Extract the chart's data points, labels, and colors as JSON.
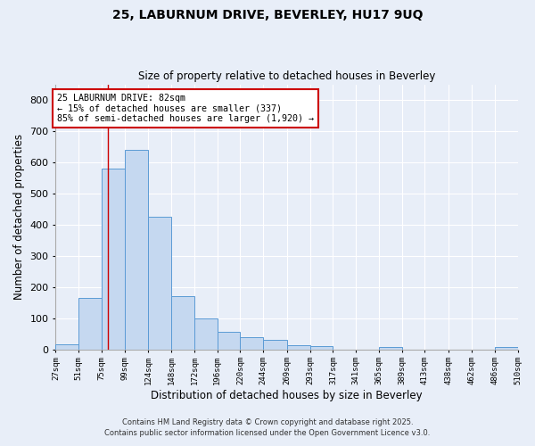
{
  "title1": "25, LABURNUM DRIVE, BEVERLEY, HU17 9UQ",
  "title2": "Size of property relative to detached houses in Beverley",
  "xlabel": "Distribution of detached houses by size in Beverley",
  "ylabel": "Number of detached properties",
  "bin_edges": [
    27,
    51,
    75,
    99,
    124,
    148,
    172,
    196,
    220,
    244,
    269,
    293,
    317,
    341,
    365,
    389,
    413,
    438,
    462,
    486,
    510
  ],
  "bar_heights": [
    17,
    165,
    580,
    640,
    425,
    170,
    100,
    55,
    40,
    30,
    12,
    10,
    0,
    0,
    8,
    0,
    0,
    0,
    0,
    7
  ],
  "bar_color": "#c5d8f0",
  "bar_edge_color": "#5b9bd5",
  "property_line_x": 82,
  "property_line_color": "#cc0000",
  "annotation_title": "25 LABURNUM DRIVE: 82sqm",
  "annotation_line1": "← 15% of detached houses are smaller (337)",
  "annotation_line2": "85% of semi-detached houses are larger (1,920) →",
  "annotation_box_color": "#ffffff",
  "annotation_box_edgecolor": "#cc0000",
  "ylim": [
    0,
    850
  ],
  "background_color": "#e8eef8",
  "grid_color": "#ffffff",
  "footer1": "Contains HM Land Registry data © Crown copyright and database right 2025.",
  "footer2": "Contains public sector information licensed under the Open Government Licence v3.0.",
  "tick_labels": [
    "27sqm",
    "51sqm",
    "75sqm",
    "99sqm",
    "124sqm",
    "148sqm",
    "172sqm",
    "196sqm",
    "220sqm",
    "244sqm",
    "269sqm",
    "293sqm",
    "317sqm",
    "341sqm",
    "365sqm",
    "389sqm",
    "413sqm",
    "438sqm",
    "462sqm",
    "486sqm",
    "510sqm"
  ]
}
